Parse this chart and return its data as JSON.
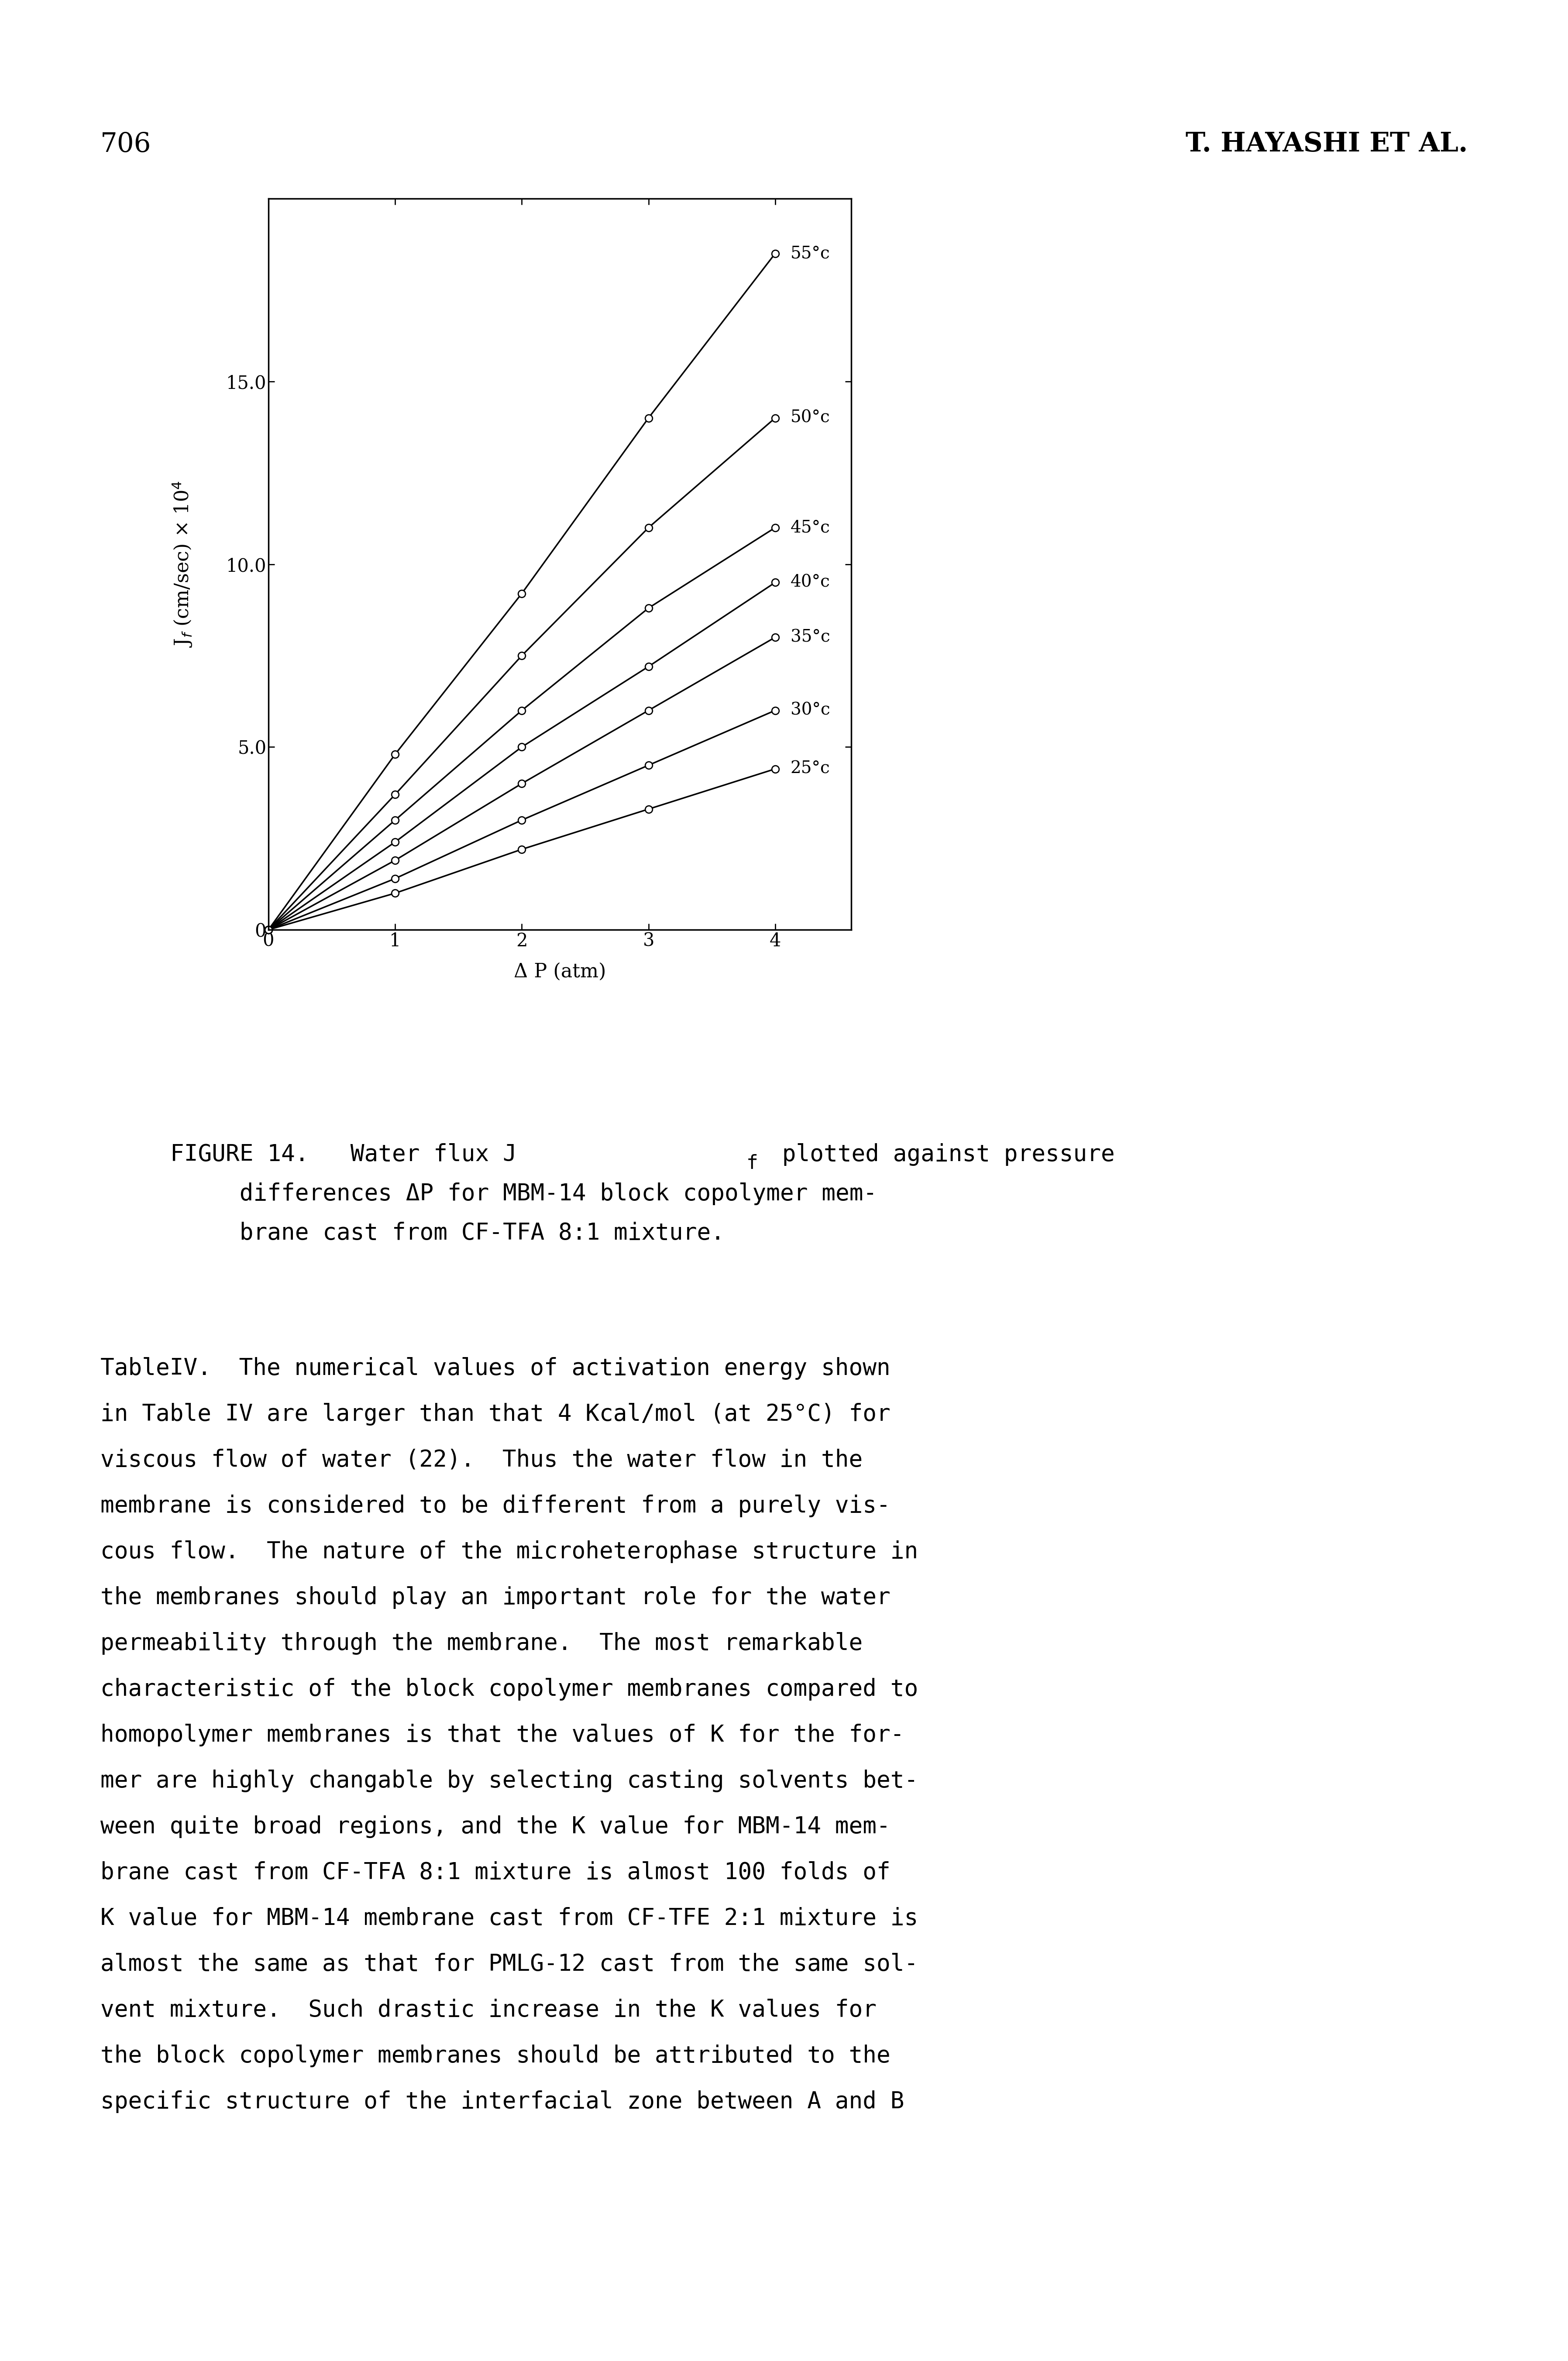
{
  "page_number": "706",
  "header_right": "T. HAYASHI ET AL.",
  "temperatures": [
    55,
    50,
    45,
    40,
    35,
    30,
    25
  ],
  "x_data": [
    0,
    1,
    2,
    3,
    4
  ],
  "y_data": {
    "55": [
      0,
      4.8,
      9.2,
      14.0,
      18.5
    ],
    "50": [
      0,
      3.7,
      7.5,
      11.0,
      14.0
    ],
    "45": [
      0,
      3.0,
      6.0,
      8.8,
      11.0
    ],
    "40": [
      0,
      2.4,
      5.0,
      7.2,
      9.5
    ],
    "35": [
      0,
      1.9,
      4.0,
      6.0,
      8.0
    ],
    "30": [
      0,
      1.4,
      3.0,
      4.5,
      6.0
    ],
    "25": [
      0,
      1.0,
      2.2,
      3.3,
      4.4
    ]
  },
  "ylim": [
    0,
    20
  ],
  "xlim": [
    0,
    4.6
  ],
  "yticks": [
    0,
    5.0,
    10.0,
    15.0
  ],
  "xticks": [
    0,
    1,
    2,
    3,
    4
  ],
  "ytick_labels": [
    "0",
    "5.0",
    "10.0",
    "15.0"
  ],
  "xtick_labels": [
    "0",
    "1",
    "2",
    "3",
    "4"
  ],
  "label_temps": [
    "55°c",
    "50°c",
    "45°c",
    "40°c",
    "35°c",
    "30°c",
    "25°c"
  ],
  "label_y_positions": [
    18.5,
    14.0,
    11.0,
    9.5,
    8.0,
    6.0,
    4.4
  ],
  "caption_line1": "FIGURE 14.   Water flux J",
  "caption_line1b": "f",
  "caption_line1c": " plotted against pressure",
  "caption_line2": "     differences ΔP for MBM-14 block copolymer mem-",
  "caption_line3": "     brane cast from CF-TFA 8:1 mixture.",
  "body_text_lines": [
    "TableIV.  The numerical values of activation energy shown",
    "in Table IV are larger than that 4 Kcal/mol (at 25°C) for",
    "viscous flow of water (22).  Thus the water flow in the",
    "membrane is considered to be different from a purely vis-",
    "cous flow.  The nature of the microheterophase structure in",
    "the membranes should play an important role for the water",
    "permeability through the membrane.  The most remarkable",
    "characteristic of the block copolymer membranes compared to",
    "homopolymer membranes is that the values of K for the for-",
    "mer are highly changable by selecting casting solvents bet-",
    "ween quite broad regions, and the K value for MBM-14 mem-",
    "brane cast from CF-TFA 8:1 mixture is almost 100 folds of",
    "K value for MBM-14 membrane cast from CF-TFE 2:1 mixture is",
    "almost the same as that for PMLG-12 cast from the same sol-",
    "vent mixture.  Such drastic increase in the K values for",
    "the block copolymer membranes should be attributed to the",
    "specific structure of the interfacial zone between A and B"
  ]
}
